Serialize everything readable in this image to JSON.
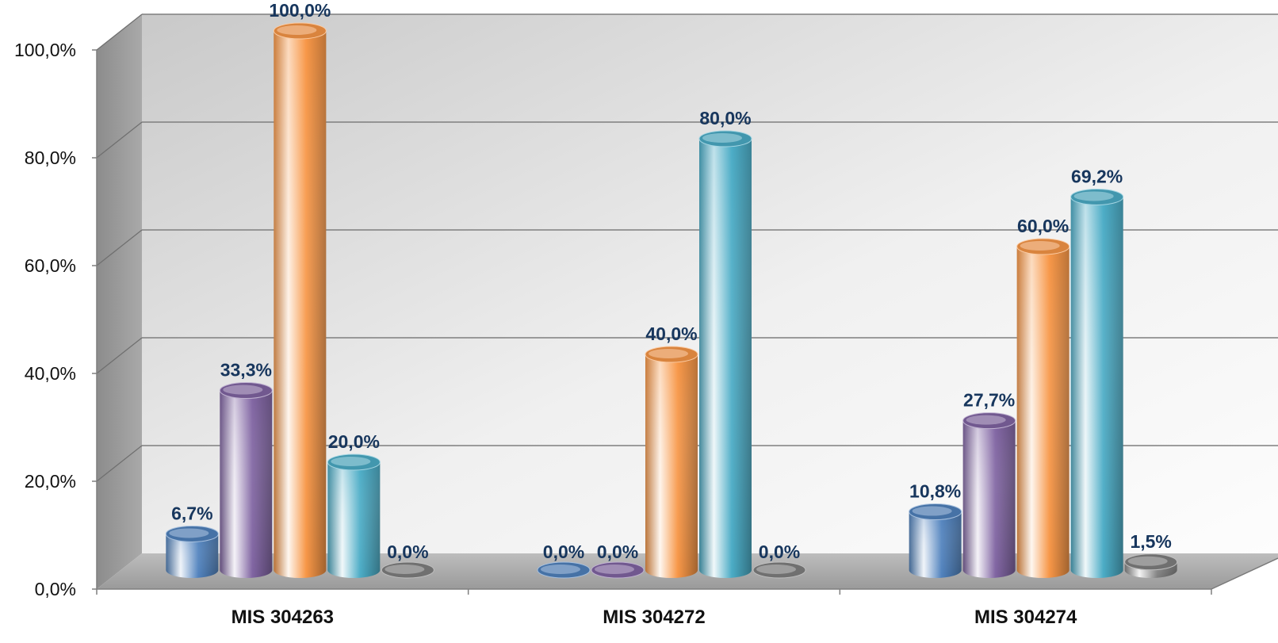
{
  "chart_data": {
    "type": "bar",
    "style": "3d-cylinder",
    "categories": [
      "MIS 304263",
      "MIS 304272",
      "MIS 304274"
    ],
    "series": [
      {
        "values": [
          6.7,
          0.0,
          10.8
        ],
        "labels": [
          "6,7%",
          "0,0%",
          "10,8%"
        ],
        "color": "#4f81bd"
      },
      {
        "values": [
          33.3,
          0.0,
          27.7
        ],
        "labels": [
          "33,3%",
          "0,0%",
          "27,7%"
        ],
        "color": "#8064a2"
      },
      {
        "values": [
          100.0,
          40.0,
          60.0
        ],
        "labels": [
          "100,0%",
          "40,0%",
          "60,0%"
        ],
        "color": "#f79646"
      },
      {
        "values": [
          20.0,
          80.0,
          69.2
        ],
        "labels": [
          "20,0%",
          "80,0%",
          "69,2%"
        ],
        "color": "#4bacc6"
      },
      {
        "values": [
          0.0,
          0.0,
          1.5
        ],
        "labels": [
          "0,0%",
          "0,0%",
          "1,5%"
        ],
        "color": "#7f7f7f"
      }
    ],
    "ylim": [
      0,
      100
    ],
    "yticks": [
      "0,0%",
      "20,0%",
      "40,0%",
      "60,0%",
      "80,0%",
      "100,0%"
    ],
    "grid": true,
    "xlabel": "",
    "ylabel": ""
  }
}
